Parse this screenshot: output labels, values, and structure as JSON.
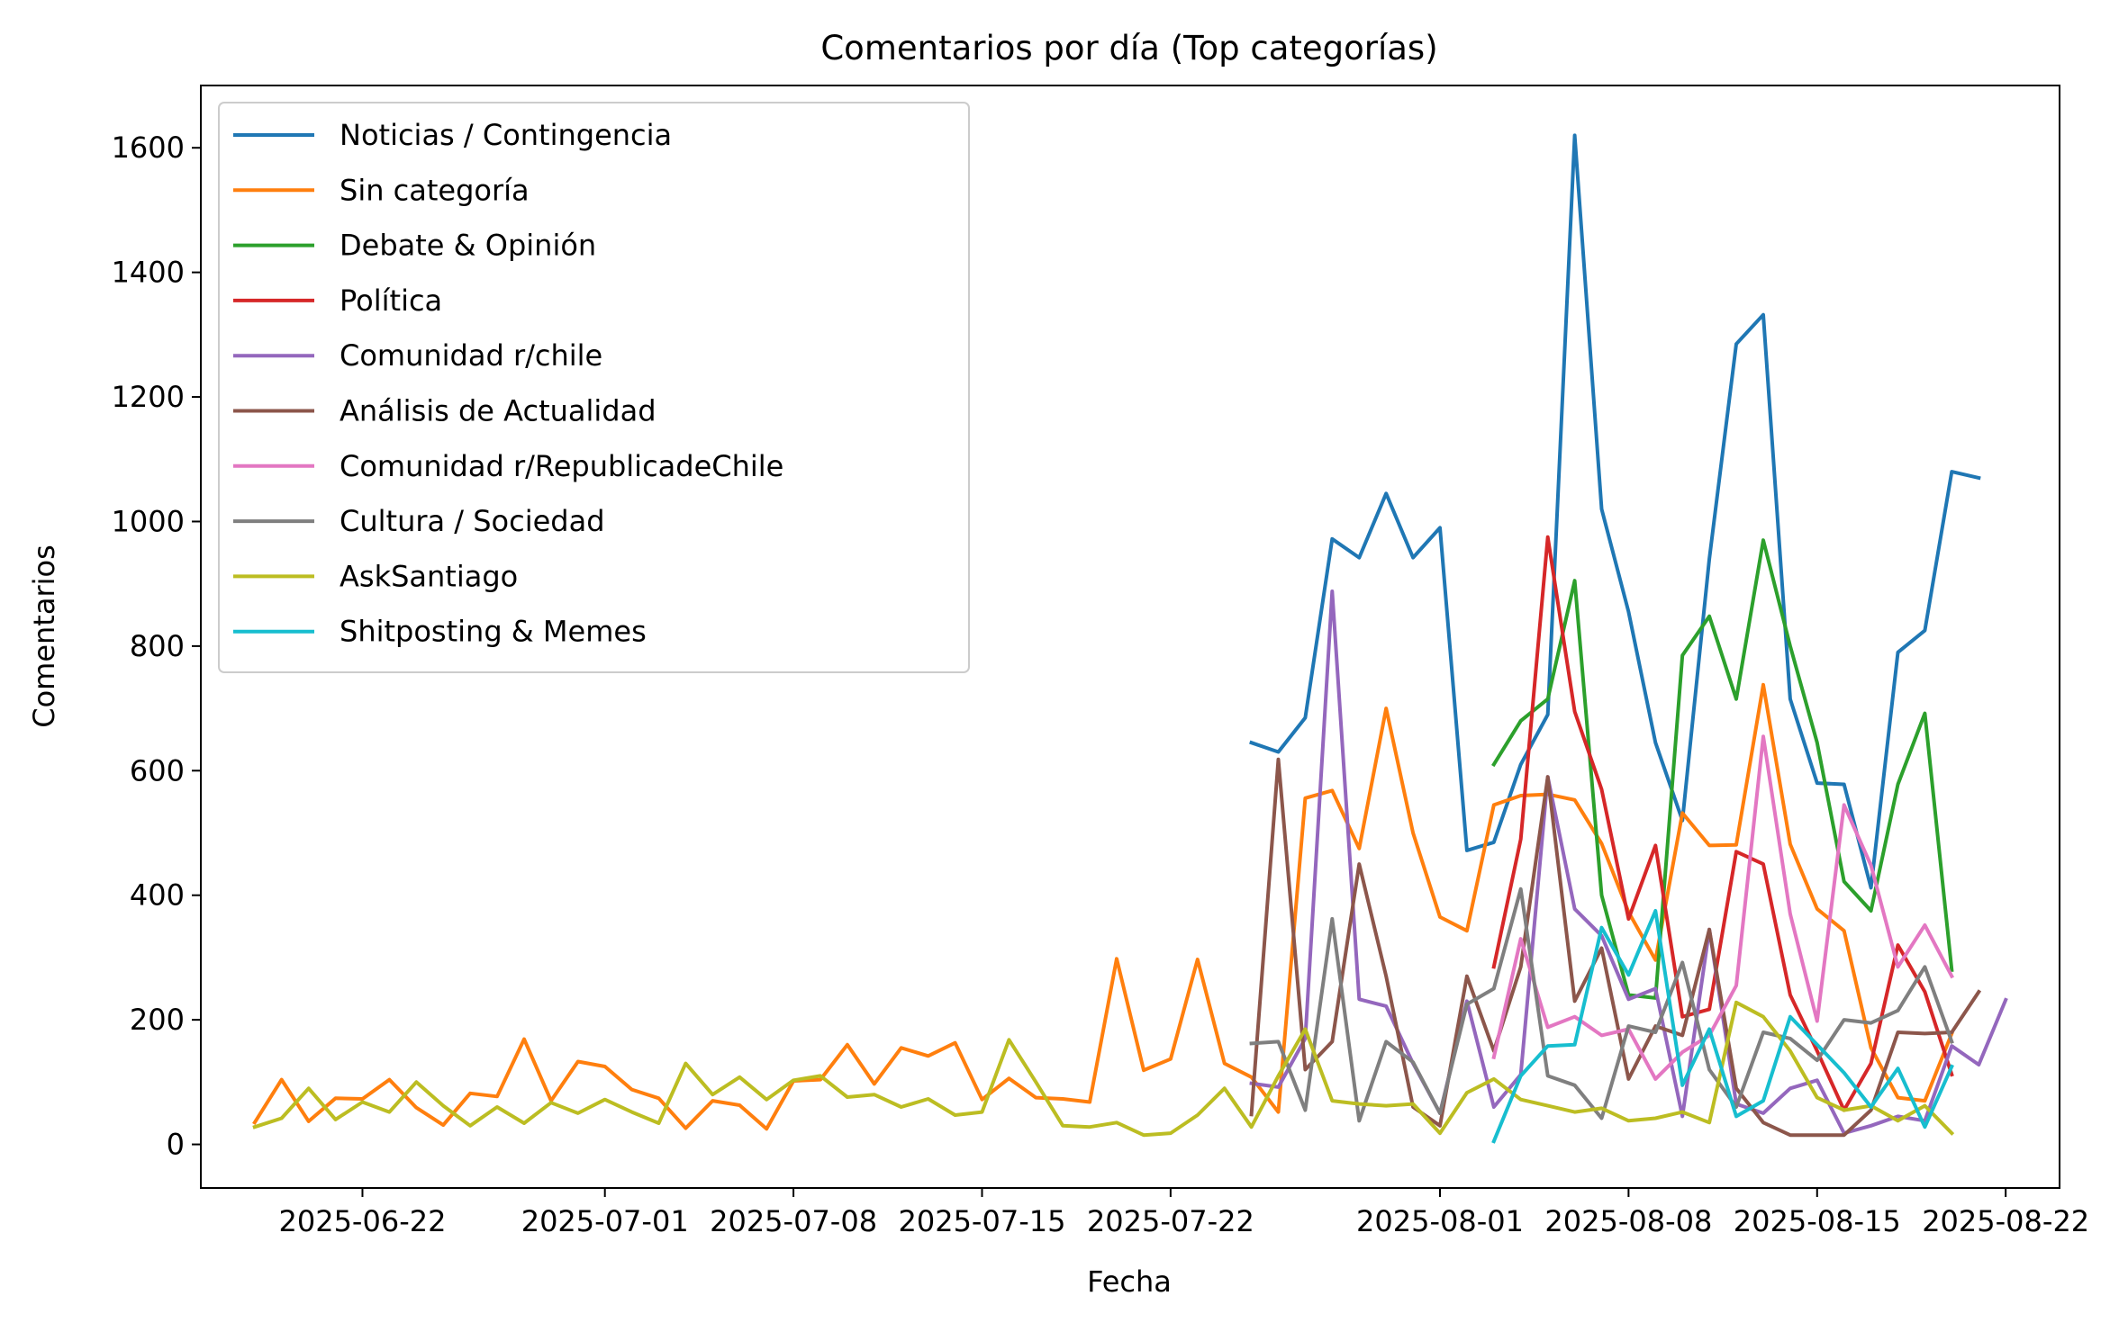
{
  "chart_data": {
    "type": "line",
    "title": "Comentarios por día (Top categorías)",
    "xlabel": "Fecha",
    "ylabel": "Comentarios",
    "x_ticks": [
      "2025-06-22",
      "2025-07-01",
      "2025-07-08",
      "2025-07-15",
      "2025-07-22",
      "2025-08-01",
      "2025-08-08",
      "2025-08-15",
      "2025-08-22"
    ],
    "y_ticks": [
      0,
      200,
      400,
      600,
      800,
      1000,
      1200,
      1400,
      1600
    ],
    "xlim": [
      "2025-06-16",
      "2025-08-24"
    ],
    "ylim": [
      -70,
      1700
    ],
    "grid": false,
    "legend_position": "upper-left",
    "series": [
      {
        "name": "Noticias / Contingencia",
        "color": "#1f77b4",
        "start": "2025-07-25",
        "values": [
          645,
          630,
          685,
          972,
          942,
          1045,
          942,
          990,
          472,
          485,
          610,
          690,
          1620,
          1020,
          855,
          645,
          520,
          940,
          1285,
          1332,
          715,
          580,
          578,
          412,
          790,
          825,
          1080,
          1070
        ]
      },
      {
        "name": "Sin categoría",
        "color": "#ff7f0e",
        "start": "2025-06-18",
        "values": [
          35,
          104,
          37,
          74,
          73,
          104,
          59,
          31,
          82,
          77,
          169,
          70,
          133,
          125,
          88,
          74,
          26,
          70,
          63,
          25,
          102,
          104,
          160,
          97,
          155,
          142,
          163,
          72,
          106,
          75,
          73,
          68,
          298,
          119,
          137,
          297,
          130,
          108,
          52,
          556,
          568,
          475,
          700,
          500,
          365,
          343,
          545,
          560,
          562,
          553,
          483,
          373,
          296,
          532,
          480,
          481,
          738,
          482,
          378,
          343,
          155,
          75,
          70,
          178
        ]
      },
      {
        "name": "Debate & Opinión",
        "color": "#2ca02c",
        "start": "2025-08-03",
        "values": [
          610,
          680,
          715,
          905,
          400,
          240,
          235,
          785,
          848,
          715,
          970,
          800,
          645,
          422,
          375,
          578,
          692,
          280
        ]
      },
      {
        "name": "Política",
        "color": "#d62728",
        "start": "2025-08-03",
        "values": [
          285,
          490,
          975,
          695,
          570,
          362,
          480,
          205,
          217,
          470,
          450,
          240,
          150,
          55,
          130,
          320,
          245,
          112
        ]
      },
      {
        "name": "Comunidad r/chile",
        "color": "#9467bd",
        "start": "2025-07-25",
        "values": [
          98,
          92,
          170,
          888,
          233,
          222,
          130,
          50,
          230,
          60,
          112,
          590,
          378,
          335,
          233,
          250,
          45,
          345,
          65,
          50,
          90,
          103,
          18,
          30,
          45,
          38,
          158,
          128,
          232
        ]
      },
      {
        "name": "Análisis de Actualidad",
        "color": "#8c564b",
        "start": "2025-07-25",
        "values": [
          48,
          618,
          120,
          165,
          450,
          270,
          60,
          30,
          270,
          150,
          285,
          590,
          230,
          315,
          105,
          190,
          175,
          345,
          90,
          35,
          15,
          15,
          15,
          55,
          180,
          178,
          180,
          245
        ]
      },
      {
        "name": "Comunidad r/RepublicadeChile",
        "color": "#e377c2",
        "start": "2025-08-03",
        "values": [
          140,
          330,
          188,
          205,
          175,
          185,
          105,
          148,
          175,
          255,
          655,
          370,
          198,
          545,
          448,
          285,
          352,
          270
        ]
      },
      {
        "name": "Cultura / Sociedad",
        "color": "#7f7f7f",
        "start": "2025-07-25",
        "values": [
          162,
          165,
          55,
          362,
          38,
          165,
          132,
          50,
          225,
          250,
          410,
          110,
          95,
          42,
          190,
          180,
          292,
          120,
          60,
          180,
          170,
          135,
          200,
          195,
          215,
          285,
          165
        ]
      },
      {
        "name": "AskSantiago",
        "color": "#bcbd22",
        "start": "2025-06-18",
        "values": [
          28,
          42,
          90,
          40,
          68,
          52,
          100,
          62,
          30,
          60,
          34,
          67,
          50,
          72,
          52,
          34,
          130,
          80,
          108,
          72,
          103,
          110,
          76,
          80,
          60,
          73,
          47,
          52,
          168,
          100,
          30,
          28,
          35,
          15,
          18,
          47,
          90,
          28,
          110,
          185,
          70,
          65,
          62,
          65,
          18,
          83,
          105,
          72,
          62,
          52,
          58,
          38,
          42,
          52,
          35,
          228,
          205,
          150,
          75,
          55,
          62,
          38,
          62,
          18
        ]
      },
      {
        "name": "Shitposting & Memes",
        "color": "#17becf",
        "start": "2025-08-03",
        "values": [
          5,
          110,
          158,
          160,
          348,
          272,
          375,
          95,
          185,
          45,
          70,
          205,
          160,
          115,
          60,
          122,
          28,
          125
        ]
      }
    ]
  }
}
